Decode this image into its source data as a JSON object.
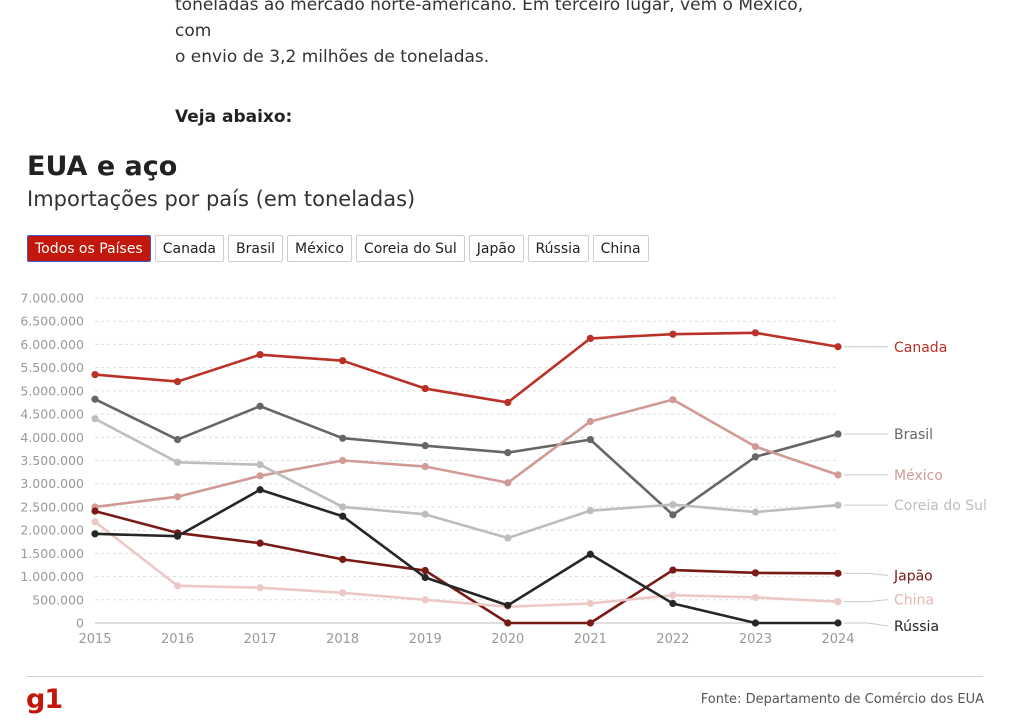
{
  "article": {
    "line1": "toneladas ao mercado norte-americano. Em terceiro lugar, vem o México, com",
    "line2": "o envio de 3,2 milhões de toneladas.",
    "cta": "Veja abaixo:"
  },
  "chart_header": {
    "title": "EUA e aço",
    "subtitle": "Importações por país (em toneladas)"
  },
  "tabs": [
    {
      "label": "Todos os Países",
      "active": true
    },
    {
      "label": "Canada"
    },
    {
      "label": "Brasil"
    },
    {
      "label": "México"
    },
    {
      "label": "Coreia do Sul"
    },
    {
      "label": "Japão"
    },
    {
      "label": "Rússia"
    },
    {
      "label": "China"
    }
  ],
  "chart_data": {
    "type": "line",
    "title": "EUA e aço",
    "subtitle": "Importações por país (em toneladas)",
    "xlabel": "",
    "ylabel": "",
    "x": [
      2015,
      2016,
      2017,
      2018,
      2019,
      2020,
      2021,
      2022,
      2023,
      2024
    ],
    "ylim": [
      0,
      7000000
    ],
    "yticks": [
      "0",
      "500.000",
      "1.000.000",
      "1.500.000",
      "2.000.000",
      "2.500.000",
      "3.000.000",
      "3.500.000",
      "4.000.000",
      "4.500.000",
      "5.000.000",
      "5.500.000",
      "6.000.000",
      "6.500.000",
      "7.000.000"
    ],
    "grid": true,
    "series": [
      {
        "name": "Canada",
        "color": "#b93127",
        "values": [
          5350000,
          5200000,
          5780000,
          5650000,
          5050000,
          4750000,
          6130000,
          6220000,
          6250000,
          5950000
        ]
      },
      {
        "name": "Brasil",
        "color": "#666666",
        "values": [
          4820000,
          3950000,
          4670000,
          3980000,
          3820000,
          3670000,
          3950000,
          2330000,
          3580000,
          4070000
        ]
      },
      {
        "name": "México",
        "color": "#d19a96",
        "values": [
          2500000,
          2720000,
          3170000,
          3500000,
          3370000,
          3020000,
          4340000,
          4810000,
          3800000,
          3190000
        ]
      },
      {
        "name": "Coreia do Sul",
        "color": "#bdbdbd",
        "values": [
          4400000,
          3460000,
          3410000,
          2500000,
          2340000,
          1830000,
          2420000,
          2550000,
          2390000,
          2540000
        ]
      },
      {
        "name": "Japão",
        "color": "#7a1a16",
        "values": [
          2410000,
          1940000,
          1720000,
          1370000,
          1130000,
          0,
          0,
          1140000,
          1080000,
          1070000
        ]
      },
      {
        "name": "China",
        "color": "#ecc9c6",
        "values": [
          2180000,
          800000,
          760000,
          650000,
          500000,
          350000,
          420000,
          600000,
          550000,
          460000
        ]
      },
      {
        "name": "Rússia",
        "color": "#262626",
        "values": [
          1920000,
          1870000,
          2870000,
          2300000,
          980000,
          380000,
          1480000,
          420000,
          0,
          0
        ]
      }
    ]
  },
  "footer": {
    "logo": "g1",
    "source": "Fonte: Departamento de Comércio dos EUA"
  }
}
